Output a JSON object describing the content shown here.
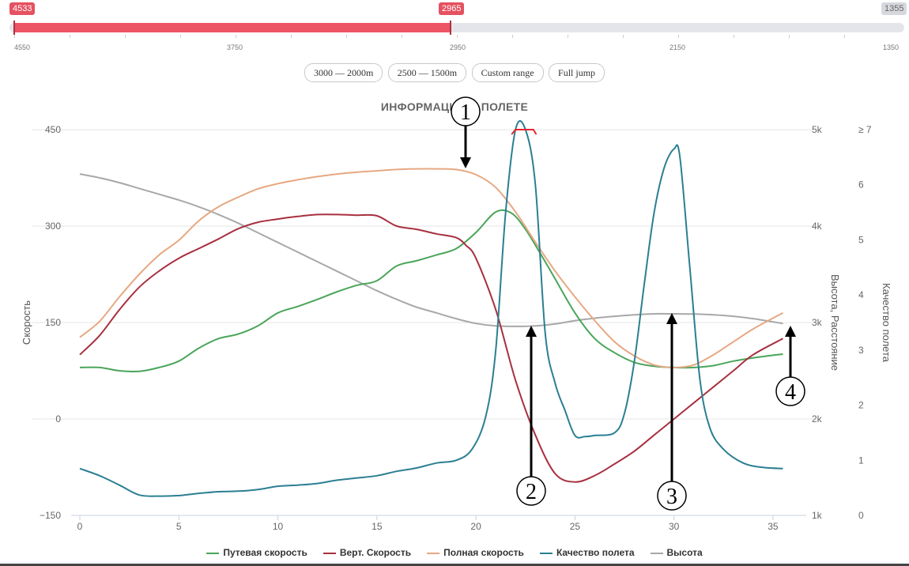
{
  "slider": {
    "left_value": "4533",
    "right_value": "2965",
    "max_value": "1355",
    "ticks": [
      "4550",
      "3750",
      "2950",
      "2150",
      "1350"
    ]
  },
  "buttons": [
    "3000 — 2000m",
    "2500 — 1500m",
    "Custom range",
    "Full jump"
  ],
  "chart_data": {
    "type": "line",
    "title": "ИНФОРМАЦИЯ О ПОЛЕТЕ",
    "xlabel": "",
    "x_ticks": [
      "0",
      "5",
      "10",
      "15",
      "20",
      "25",
      "30",
      "35"
    ],
    "xlim": [
      0,
      36
    ],
    "y_left": {
      "label": "Скорость",
      "ticks": [
        "450",
        "300",
        "150",
        "0",
        "−150"
      ],
      "range": [
        -150,
        450
      ]
    },
    "y_right1": {
      "label": "Высота, Расстояние",
      "ticks": [
        "5k",
        "4k",
        "3k",
        "2k",
        "1k"
      ],
      "range": [
        1000,
        5000
      ]
    },
    "y_right2": {
      "label": "Качество полета",
      "ticks": [
        "≥ 7",
        "6",
        "5",
        "4",
        "3",
        "2",
        "1",
        "0"
      ],
      "range": [
        0,
        7
      ]
    },
    "series": [
      {
        "name": "Путевая скорость",
        "color": "#4aa55a",
        "axis": "left",
        "points": [
          [
            0,
            80
          ],
          [
            1,
            80
          ],
          [
            2,
            75
          ],
          [
            3,
            74
          ],
          [
            4,
            80
          ],
          [
            5,
            90
          ],
          [
            6,
            110
          ],
          [
            7,
            125
          ],
          [
            8,
            132
          ],
          [
            9,
            145
          ],
          [
            10,
            165
          ],
          [
            11,
            175
          ],
          [
            12,
            186
          ],
          [
            13,
            198
          ],
          [
            14,
            208
          ],
          [
            15,
            215
          ],
          [
            16,
            238
          ],
          [
            17,
            246
          ],
          [
            18,
            255
          ],
          [
            19,
            265
          ],
          [
            20,
            290
          ],
          [
            21,
            322
          ],
          [
            21.8,
            320
          ],
          [
            22.5,
            295
          ],
          [
            23.2,
            260
          ],
          [
            24,
            218
          ],
          [
            25,
            165
          ],
          [
            26,
            125
          ],
          [
            27,
            103
          ],
          [
            28,
            88
          ],
          [
            29,
            82
          ],
          [
            30,
            80
          ],
          [
            31,
            80
          ],
          [
            32,
            83
          ],
          [
            33,
            90
          ],
          [
            34,
            95
          ],
          [
            35.5,
            101
          ]
        ]
      },
      {
        "name": "Верт. Скорость",
        "color": "#a7303f",
        "axis": "left",
        "points": [
          [
            0,
            100
          ],
          [
            1,
            130
          ],
          [
            2,
            170
          ],
          [
            3,
            205
          ],
          [
            4,
            230
          ],
          [
            5,
            250
          ],
          [
            6,
            265
          ],
          [
            7,
            280
          ],
          [
            8,
            296
          ],
          [
            9,
            306
          ],
          [
            10,
            311
          ],
          [
            11,
            315
          ],
          [
            12,
            318
          ],
          [
            13,
            318
          ],
          [
            14,
            317
          ],
          [
            15,
            316
          ],
          [
            16,
            300
          ],
          [
            17,
            295
          ],
          [
            18,
            288
          ],
          [
            19,
            282
          ],
          [
            19.5,
            270
          ],
          [
            20,
            250
          ],
          [
            21,
            170
          ],
          [
            22,
            60
          ],
          [
            23,
            -25
          ],
          [
            24,
            -85
          ],
          [
            25,
            -98
          ],
          [
            26,
            -88
          ],
          [
            27,
            -70
          ],
          [
            28,
            -50
          ],
          [
            29,
            -25
          ],
          [
            30,
            0
          ],
          [
            31,
            25
          ],
          [
            32,
            50
          ],
          [
            33,
            75
          ],
          [
            34,
            100
          ],
          [
            35.5,
            125
          ]
        ]
      },
      {
        "name": "Полная скорость",
        "color": "#e6a882",
        "axis": "left",
        "points": [
          [
            0,
            127
          ],
          [
            1,
            152
          ],
          [
            2,
            190
          ],
          [
            3,
            225
          ],
          [
            4,
            255
          ],
          [
            5,
            278
          ],
          [
            6,
            308
          ],
          [
            7,
            330
          ],
          [
            8,
            345
          ],
          [
            9,
            358
          ],
          [
            10,
            366
          ],
          [
            11,
            372
          ],
          [
            12,
            377
          ],
          [
            13,
            381
          ],
          [
            14,
            384
          ],
          [
            15,
            386
          ],
          [
            16,
            388
          ],
          [
            17,
            389
          ],
          [
            18,
            389
          ],
          [
            19,
            388
          ],
          [
            20,
            380
          ],
          [
            21,
            360
          ],
          [
            22,
            322
          ],
          [
            23,
            275
          ],
          [
            24,
            230
          ],
          [
            25,
            190
          ],
          [
            26,
            153
          ],
          [
            27,
            120
          ],
          [
            28,
            98
          ],
          [
            29,
            84
          ],
          [
            30,
            80
          ],
          [
            31,
            84
          ],
          [
            32,
            100
          ],
          [
            33,
            120
          ],
          [
            34,
            140
          ],
          [
            35.5,
            165
          ]
        ]
      },
      {
        "name": "Качество полета",
        "color": "#2b7f92",
        "axis": "right2",
        "points": [
          [
            0,
            0.85
          ],
          [
            1,
            0.72
          ],
          [
            2,
            0.55
          ],
          [
            3,
            0.37
          ],
          [
            4,
            0.35
          ],
          [
            5,
            0.36
          ],
          [
            6,
            0.4
          ],
          [
            7,
            0.43
          ],
          [
            8,
            0.44
          ],
          [
            9,
            0.47
          ],
          [
            10,
            0.53
          ],
          [
            11,
            0.55
          ],
          [
            12,
            0.58
          ],
          [
            13,
            0.64
          ],
          [
            14,
            0.68
          ],
          [
            15,
            0.72
          ],
          [
            16,
            0.8
          ],
          [
            17,
            0.86
          ],
          [
            18,
            0.95
          ],
          [
            19,
            1.0
          ],
          [
            19.8,
            1.2
          ],
          [
            20.5,
            1.8
          ],
          [
            21,
            3.0
          ],
          [
            21.5,
            5.5
          ],
          [
            22,
            7.2
          ],
          [
            22.5,
            7.3
          ],
          [
            23,
            6.0
          ],
          [
            23.5,
            3.3
          ],
          [
            24,
            2.4
          ],
          [
            24.5,
            1.9
          ],
          [
            25,
            1.45
          ],
          [
            25.5,
            1.43
          ],
          [
            26,
            1.45
          ],
          [
            27,
            1.5
          ],
          [
            27.5,
            1.85
          ],
          [
            28,
            2.8
          ],
          [
            28.5,
            4.2
          ],
          [
            29,
            5.5
          ],
          [
            29.5,
            6.3
          ],
          [
            30,
            6.65
          ],
          [
            30.3,
            6.5
          ],
          [
            30.8,
            4.5
          ],
          [
            31.3,
            2.5
          ],
          [
            31.8,
            1.6
          ],
          [
            32.5,
            1.2
          ],
          [
            33.5,
            0.95
          ],
          [
            34.5,
            0.87
          ],
          [
            35.5,
            0.85
          ]
        ]
      },
      {
        "name": "Высота",
        "color": "#a8a8a8",
        "axis": "right1",
        "points": [
          [
            0,
            4540
          ],
          [
            1,
            4500
          ],
          [
            2,
            4450
          ],
          [
            3,
            4390
          ],
          [
            4,
            4330
          ],
          [
            5,
            4270
          ],
          [
            6,
            4200
          ],
          [
            7,
            4120
          ],
          [
            8,
            4030
          ],
          [
            9,
            3930
          ],
          [
            10,
            3830
          ],
          [
            11,
            3730
          ],
          [
            12,
            3630
          ],
          [
            13,
            3530
          ],
          [
            14,
            3430
          ],
          [
            15,
            3330
          ],
          [
            16,
            3240
          ],
          [
            17,
            3160
          ],
          [
            18,
            3100
          ],
          [
            19,
            3040
          ],
          [
            20,
            2990
          ],
          [
            21,
            2965
          ],
          [
            22,
            2960
          ],
          [
            23,
            2965
          ],
          [
            24,
            2985
          ],
          [
            25,
            3020
          ],
          [
            26,
            3045
          ],
          [
            27,
            3065
          ],
          [
            28,
            3080
          ],
          [
            29,
            3090
          ],
          [
            30,
            3090
          ],
          [
            31,
            3088
          ],
          [
            32,
            3080
          ],
          [
            33,
            3065
          ],
          [
            34,
            3040
          ],
          [
            35.5,
            2990
          ]
        ]
      }
    ],
    "annotations": [
      "1",
      "2",
      "3",
      "4"
    ]
  }
}
